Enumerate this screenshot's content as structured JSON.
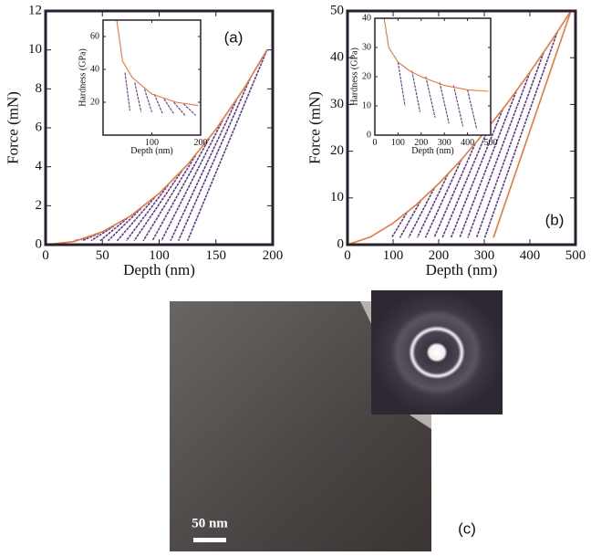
{
  "chart_data": [
    {
      "type": "line",
      "panel_label": "(a)",
      "x_label": "Depth (nm)",
      "y_label": "Force (mN)",
      "xlim": [
        0,
        200
      ],
      "ylim": [
        0,
        12
      ],
      "xticks": [
        0,
        50,
        100,
        150,
        200
      ],
      "yticks": [
        0,
        2,
        4,
        6,
        8,
        10,
        12
      ],
      "series": [
        {
          "color": "#5b3a8c",
          "x": [
            35,
            25
          ],
          "values": [
            0.32,
            0.2
          ]
        },
        {
          "color": "#5b3a8c",
          "x": [
            47,
            32
          ],
          "values": [
            0.58,
            0.2
          ]
        },
        {
          "color": "#5b3a8c",
          "x": [
            60,
            40
          ],
          "values": [
            0.95,
            0.2
          ]
        },
        {
          "color": "#5b3a8c",
          "x": [
            72,
            48
          ],
          "values": [
            1.36,
            0.2
          ]
        },
        {
          "color": "#5b3a8c",
          "x": [
            84,
            55
          ],
          "values": [
            1.86,
            0.2
          ]
        },
        {
          "color": "#5b3a8c",
          "x": [
            96,
            63
          ],
          "values": [
            2.42,
            0.2
          ]
        },
        {
          "color": "#5b3a8c",
          "x": [
            108,
            71
          ],
          "values": [
            3.07,
            0.2
          ]
        },
        {
          "color": "#5b3a8c",
          "x": [
            120,
            78
          ],
          "values": [
            3.79,
            0.2
          ]
        },
        {
          "color": "#5b3a8c",
          "x": [
            132,
            86
          ],
          "values": [
            4.58,
            0.2
          ]
        },
        {
          "color": "#5b3a8c",
          "x": [
            144,
            94
          ],
          "values": [
            5.45,
            0.2
          ]
        },
        {
          "color": "#5b3a8c",
          "x": [
            156,
            102
          ],
          "values": [
            6.4,
            0.2
          ]
        },
        {
          "color": "#5b3a8c",
          "x": [
            168,
            110
          ],
          "values": [
            7.42,
            0.2
          ]
        },
        {
          "color": "#5b3a8c",
          "x": [
            180,
            117
          ],
          "values": [
            8.52,
            0.2
          ]
        },
        {
          "color": "#5b3a8c",
          "x": [
            195,
            125
          ],
          "values": [
            10,
            0.2
          ]
        },
        {
          "color": "#e8773a",
          "x": [
            0,
            25,
            50,
            75,
            100,
            125,
            150,
            175,
            195
          ],
          "values": [
            0,
            0.16,
            0.66,
            1.48,
            2.63,
            4.11,
            5.92,
            8.05,
            10
          ]
        }
      ]
    },
    {
      "type": "line",
      "x_label": "Depth (nm)",
      "y_label": "Hardness (GPa)",
      "xlim": [
        0,
        200
      ],
      "ylim": [
        0,
        70
      ],
      "xticks": [
        100,
        200
      ],
      "yticks": [
        20,
        40,
        60
      ],
      "series": [
        {
          "color": "#5b3a8c",
          "x": [
            45,
            55
          ],
          "values": [
            38,
            15
          ]
        },
        {
          "color": "#5b3a8c",
          "x": [
            65,
            78
          ],
          "values": [
            32,
            14
          ]
        },
        {
          "color": "#5b3a8c",
          "x": [
            85,
            100
          ],
          "values": [
            28,
            14
          ]
        },
        {
          "color": "#5b3a8c",
          "x": [
            105,
            122
          ],
          "values": [
            25,
            13
          ]
        },
        {
          "color": "#5b3a8c",
          "x": [
            125,
            145
          ],
          "values": [
            22,
            13
          ]
        },
        {
          "color": "#5b3a8c",
          "x": [
            145,
            168
          ],
          "values": [
            20,
            12
          ]
        },
        {
          "color": "#5b3a8c",
          "x": [
            165,
            190
          ],
          "values": [
            19,
            12
          ]
        },
        {
          "color": "#e8773a",
          "x": [
            28,
            40,
            60,
            100,
            150,
            195
          ],
          "values": [
            70,
            45,
            35,
            25,
            20,
            18
          ]
        }
      ]
    },
    {
      "type": "line",
      "panel_label": "(b)",
      "x_label": "Depth (nm)",
      "y_label": "Force (mN)",
      "xlim": [
        0,
        500
      ],
      "ylim": [
        0,
        50
      ],
      "xticks": [
        0,
        100,
        200,
        300,
        400,
        500
      ],
      "yticks": [
        0,
        10,
        20,
        30,
        40,
        50
      ],
      "series": [
        {
          "color": "#5b3a8c",
          "x": [
            130,
            97
          ],
          "values": [
            6.83,
            1.5
          ]
        },
        {
          "color": "#5b3a8c",
          "x": [
            160,
            115
          ],
          "values": [
            9.33,
            1.5
          ]
        },
        {
          "color": "#5b3a8c",
          "x": [
            190,
            134
          ],
          "values": [
            12.07,
            1.5
          ]
        },
        {
          "color": "#5b3a8c",
          "x": [
            220,
            153
          ],
          "values": [
            15.04,
            1.5
          ]
        },
        {
          "color": "#5b3a8c",
          "x": [
            250,
            171
          ],
          "values": [
            18.22,
            1.5
          ]
        },
        {
          "color": "#5b3a8c",
          "x": [
            280,
            190
          ],
          "values": [
            21.6,
            1.5
          ]
        },
        {
          "color": "#5b3a8c",
          "x": [
            310,
            208
          ],
          "values": [
            25.16,
            1.5
          ]
        },
        {
          "color": "#5b3a8c",
          "x": [
            340,
            227
          ],
          "values": [
            28.9,
            1.5
          ]
        },
        {
          "color": "#5b3a8c",
          "x": [
            370,
            246
          ],
          "values": [
            32.8,
            1.5
          ]
        },
        {
          "color": "#5b3a8c",
          "x": [
            400,
            264
          ],
          "values": [
            36.88,
            1.5
          ]
        },
        {
          "color": "#5b3a8c",
          "x": [
            430,
            283
          ],
          "values": [
            41.1,
            1.5
          ]
        },
        {
          "color": "#5b3a8c",
          "x": [
            460,
            301
          ],
          "values": [
            45.48,
            1.5
          ]
        },
        {
          "color": "#e8773a",
          "x": [
            490,
            320
          ],
          "values": [
            50,
            1.5
          ]
        },
        {
          "color": "#e8773a",
          "x": [
            0,
            50,
            100,
            150,
            200,
            250,
            300,
            350,
            400,
            450,
            490
          ],
          "values": [
            0,
            1.63,
            4.61,
            8.47,
            13.04,
            18.2,
            24,
            30.2,
            36.9,
            44,
            50
          ]
        }
      ]
    },
    {
      "type": "line",
      "x_label": "Depth (nm)",
      "y_label": "Hardness (GPa)",
      "xlim": [
        0,
        500
      ],
      "ylim": [
        0,
        40
      ],
      "xticks": [
        0,
        100,
        200,
        300,
        400,
        500
      ],
      "yticks": [
        0,
        10,
        20,
        30,
        40
      ],
      "series": [
        {
          "color": "#5b3a8c",
          "x": [
            100,
            130
          ],
          "values": [
            25,
            10
          ]
        },
        {
          "color": "#5b3a8c",
          "x": [
            160,
            195
          ],
          "values": [
            22,
            8
          ]
        },
        {
          "color": "#5b3a8c",
          "x": [
            220,
            260
          ],
          "values": [
            20,
            6
          ]
        },
        {
          "color": "#5b3a8c",
          "x": [
            280,
            320
          ],
          "values": [
            18,
            4
          ]
        },
        {
          "color": "#5b3a8c",
          "x": [
            340,
            380
          ],
          "values": [
            17,
            3
          ]
        },
        {
          "color": "#5b3a8c",
          "x": [
            400,
            440
          ],
          "values": [
            15.5,
            2
          ]
        },
        {
          "color": "#e8773a",
          "x": [
            40,
            60,
            100,
            150,
            200,
            300,
            400,
            490
          ],
          "values": [
            40,
            30,
            25,
            22,
            20,
            17,
            15.5,
            15
          ]
        }
      ]
    }
  ],
  "image": {
    "scale_bar": "50 nm",
    "panel_label": "(c)"
  }
}
